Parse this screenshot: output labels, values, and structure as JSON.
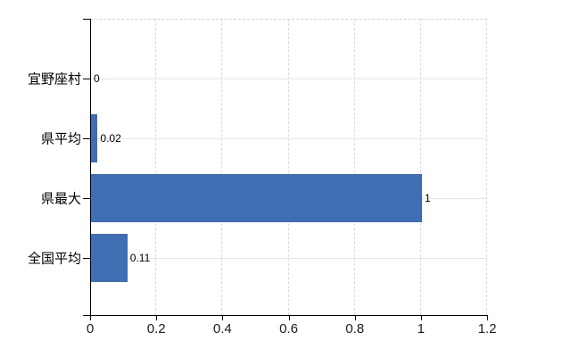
{
  "chart_data": {
    "type": "bar",
    "orientation": "horizontal",
    "title": "",
    "xlabel": "",
    "ylabel": "",
    "categories": [
      "宜野座村",
      "県平均",
      "県最大",
      "全国平均"
    ],
    "values": [
      0,
      0.02,
      1,
      0.11
    ],
    "value_labels": [
      "0",
      "0.02",
      "1",
      "0.11"
    ],
    "x_ticks": [
      0,
      0.2,
      0.4,
      0.6,
      0.8,
      1,
      1.2
    ],
    "x_tick_labels": [
      "0",
      "0.2",
      "0.4",
      "0.6",
      "0.8",
      "1",
      "1.2"
    ],
    "xlim": [
      0,
      1.2
    ],
    "grid": true,
    "legend_position": "none",
    "bar_color": "#406eb2",
    "axis_color": "#000000",
    "vertical_gridline_color": "#d9d9d9",
    "horizontal_gridline_color": "#e2e7e2",
    "label_color": "#000000",
    "background_color": "#ffffff"
  }
}
